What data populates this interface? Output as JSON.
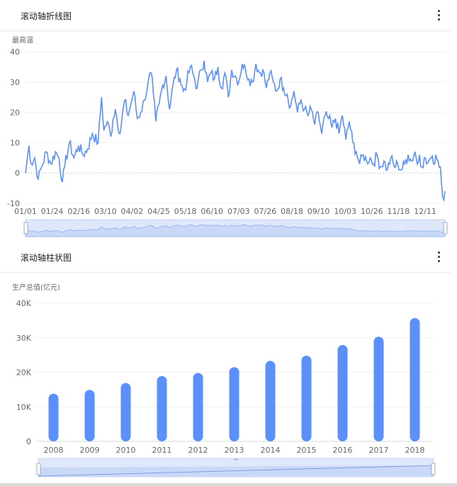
{
  "line_card": {
    "title": "滚动轴折线图"
  },
  "bar_card": {
    "title": "滚动轴柱状图"
  },
  "chart_data": [
    {
      "type": "line",
      "ylabel": "最高温",
      "ylim": [
        -10,
        40
      ],
      "y_ticks": [
        "40",
        "30",
        "20",
        "10",
        "0",
        "-10"
      ],
      "x_ticks": [
        "01/01",
        "01/24",
        "02/16",
        "03/10",
        "04/02",
        "04/25",
        "05/18",
        "06/10",
        "07/03",
        "07/26",
        "08/18",
        "09/10",
        "10/03",
        "10/26",
        "11/18",
        "12/11"
      ],
      "series_color": "#5b8ff9",
      "grid": true,
      "slider": true,
      "anchors": [
        [
          0,
          0
        ],
        [
          3,
          9
        ],
        [
          5,
          3
        ],
        [
          8,
          5
        ],
        [
          11,
          -2
        ],
        [
          14,
          2
        ],
        [
          18,
          7
        ],
        [
          22,
          3
        ],
        [
          26,
          7
        ],
        [
          29,
          5
        ],
        [
          32,
          -3
        ],
        [
          34,
          2
        ],
        [
          38,
          10
        ],
        [
          42,
          5
        ],
        [
          46,
          9
        ],
        [
          50,
          6
        ],
        [
          54,
          8
        ],
        [
          58,
          13
        ],
        [
          63,
          10
        ],
        [
          66,
          25
        ],
        [
          68,
          14
        ],
        [
          71,
          17
        ],
        [
          74,
          12
        ],
        [
          76,
          18
        ],
        [
          78,
          21
        ],
        [
          82,
          13
        ],
        [
          86,
          24
        ],
        [
          89,
          19
        ],
        [
          91,
          22
        ],
        [
          94,
          27
        ],
        [
          97,
          18
        ],
        [
          100,
          20
        ],
        [
          103,
          24
        ],
        [
          106,
          29
        ],
        [
          109,
          33
        ],
        [
          111,
          26
        ],
        [
          113,
          17
        ],
        [
          116,
          23
        ],
        [
          119,
          29
        ],
        [
          122,
          32
        ],
        [
          125,
          21
        ],
        [
          128,
          29
        ],
        [
          131,
          34
        ],
        [
          134,
          31
        ],
        [
          137,
          27
        ],
        [
          140,
          30
        ],
        [
          143,
          35
        ],
        [
          146,
          32
        ],
        [
          149,
          28
        ],
        [
          152,
          34
        ],
        [
          155,
          37
        ],
        [
          158,
          30
        ],
        [
          161,
          33
        ],
        [
          164,
          31
        ],
        [
          167,
          35
        ],
        [
          170,
          28
        ],
        [
          173,
          33
        ],
        [
          176,
          25
        ],
        [
          179,
          34
        ],
        [
          182,
          32
        ],
        [
          185,
          30
        ],
        [
          188,
          36
        ],
        [
          191,
          34
        ],
        [
          194,
          31
        ],
        [
          197,
          30
        ],
        [
          200,
          36
        ],
        [
          203,
          33
        ],
        [
          206,
          34
        ],
        [
          209,
          28
        ],
        [
          212,
          33
        ],
        [
          215,
          30
        ],
        [
          218,
          27
        ],
        [
          221,
          31
        ],
        [
          224,
          28
        ],
        [
          227,
          26
        ],
        [
          230,
          22
        ],
        [
          233,
          27
        ],
        [
          236,
          20
        ],
        [
          239,
          24
        ],
        [
          242,
          21
        ],
        [
          245,
          19
        ],
        [
          248,
          21
        ],
        [
          251,
          16
        ],
        [
          254,
          20
        ],
        [
          257,
          13
        ],
        [
          260,
          19
        ],
        [
          263,
          18
        ],
        [
          266,
          15
        ],
        [
          269,
          18
        ],
        [
          272,
          13
        ],
        [
          275,
          19
        ],
        [
          278,
          11
        ],
        [
          281,
          17
        ],
        [
          284,
          10
        ],
        [
          287,
          7
        ],
        [
          290,
          3
        ],
        [
          293,
          6
        ],
        [
          296,
          4
        ],
        [
          299,
          5
        ],
        [
          302,
          3
        ],
        [
          305,
          6
        ],
        [
          308,
          2
        ],
        [
          311,
          4
        ],
        [
          314,
          1
        ],
        [
          317,
          5
        ],
        [
          320,
          2
        ],
        [
          323,
          3
        ],
        [
          326,
          1
        ],
        [
          329,
          3
        ],
        [
          332,
          6
        ],
        [
          335,
          4
        ],
        [
          338,
          7
        ],
        [
          340,
          3
        ],
        [
          342,
          6
        ],
        [
          344,
          2
        ],
        [
          346,
          5
        ],
        [
          348,
          3
        ],
        [
          350,
          4
        ],
        [
          352,
          5
        ],
        [
          354,
          3
        ],
        [
          356,
          6
        ],
        [
          358,
          4
        ],
        [
          360,
          2
        ],
        [
          362,
          -8
        ],
        [
          364,
          -6
        ]
      ]
    },
    {
      "type": "bar",
      "ylabel": "生产总值(亿元)",
      "ylim": [
        0,
        40000
      ],
      "y_ticks": [
        "40K",
        "30K",
        "20K",
        "10K",
        "0"
      ],
      "categories": [
        "2008",
        "2009",
        "2010",
        "2011",
        "2012",
        "2013",
        "2014",
        "2015",
        "2016",
        "2017",
        "2018"
      ],
      "values": [
        13800,
        14900,
        16900,
        18900,
        19800,
        21500,
        23300,
        24800,
        27900,
        30300,
        35700
      ],
      "series_color": "#5b8ff9",
      "grid": true,
      "slider": true
    }
  ]
}
